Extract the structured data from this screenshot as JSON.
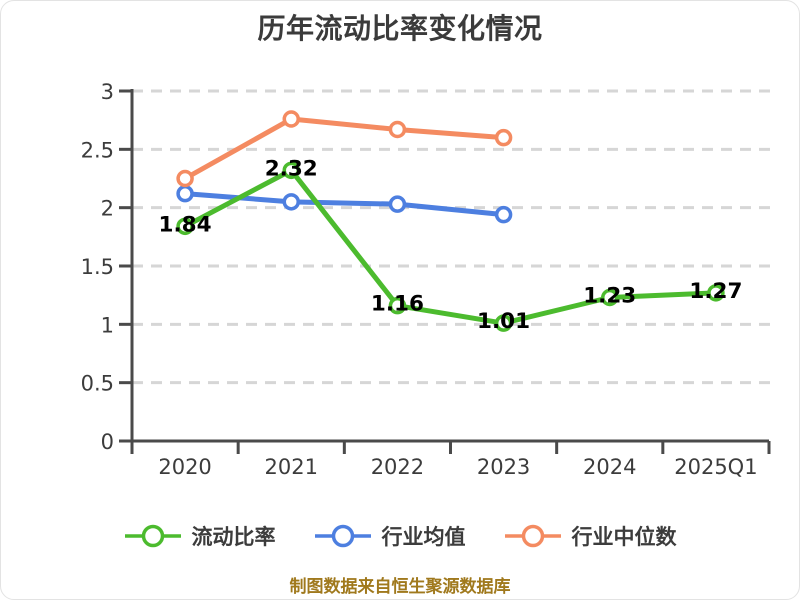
{
  "chart_data": {
    "type": "line",
    "title": "历年流动比率变化情况",
    "categories": [
      "2020",
      "2021",
      "2022",
      "2023",
      "2024",
      "2025Q1"
    ],
    "yticks": [
      "0",
      "0.5",
      "1",
      "1.5",
      "2",
      "2.5",
      "3"
    ],
    "ylim": [
      0,
      3
    ],
    "grid": "dashed-horizontal",
    "legend_position": "bottom",
    "series": [
      {
        "name": "流动比率",
        "color": "#4cbb2e",
        "values": [
          1.84,
          2.32,
          1.16,
          1.01,
          1.23,
          1.27
        ],
        "data_labels": true
      },
      {
        "name": "行业均值",
        "color": "#4d7fe0",
        "values": [
          2.12,
          2.05,
          2.03,
          1.94,
          null,
          null
        ],
        "data_labels": false
      },
      {
        "name": "行业中位数",
        "color": "#f48b61",
        "values": [
          2.25,
          2.76,
          2.67,
          2.6,
          null,
          null
        ],
        "data_labels": false
      }
    ],
    "footer": "制图数据来自恒生聚源数据库",
    "colors": {
      "axis": "#4a4a4a",
      "grid": "#d6d6d6",
      "tick_text": "#3c3c3c",
      "data_label": "#000000",
      "title": "#3b3b3b",
      "legend_text": "#3c3c3c",
      "footer": "#a0791d",
      "marker_fill": "#ffffff"
    }
  }
}
